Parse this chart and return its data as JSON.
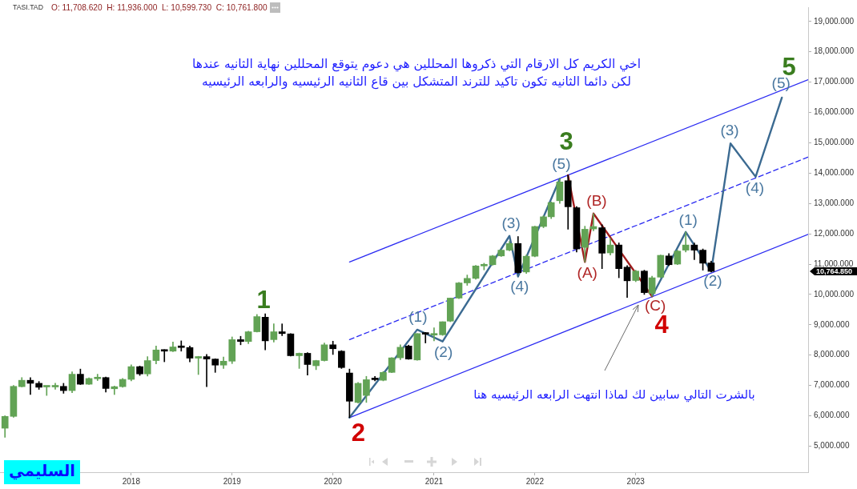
{
  "chart_data": {
    "type": "candlestick",
    "title": "TASI.TAD",
    "subtitle": "O: 11,708.620  H: 11,936.000  L: 10,599.730  C: 10,761.800",
    "x": [
      "2016-10",
      "2016-11",
      "2016-12",
      "2017-01",
      "2017-02",
      "2017-03",
      "2017-04",
      "2017-05",
      "2017-06",
      "2017-07",
      "2017-08",
      "2017-09",
      "2017-10",
      "2017-11",
      "2017-12",
      "2018-01",
      "2018-02",
      "2018-03",
      "2018-04",
      "2018-05",
      "2018-06",
      "2018-07",
      "2018-08",
      "2018-09",
      "2018-10",
      "2018-11",
      "2018-12",
      "2019-01",
      "2019-02",
      "2019-03",
      "2019-04",
      "2019-05",
      "2019-06",
      "2019-07",
      "2019-08",
      "2019-09",
      "2019-10",
      "2019-11",
      "2019-12",
      "2020-01",
      "2020-02",
      "2020-03",
      "2020-04",
      "2020-05",
      "2020-06",
      "2020-07",
      "2020-08",
      "2020-09",
      "2020-10",
      "2020-11",
      "2020-12",
      "2021-01",
      "2021-02",
      "2021-03",
      "2021-04",
      "2021-05",
      "2021-06",
      "2021-07",
      "2021-08",
      "2021-09",
      "2021-10",
      "2021-11",
      "2021-12",
      "2022-01",
      "2022-02",
      "2022-03",
      "2022-04",
      "2022-05",
      "2022-06",
      "2022-07",
      "2022-08",
      "2022-09",
      "2022-10",
      "2022-11",
      "2022-12",
      "2023-01",
      "2023-02",
      "2023-03",
      "2023-04",
      "2023-05",
      "2023-06",
      "2023-07",
      "2023-08",
      "2023-09",
      "2023-10"
    ],
    "ohlc": [
      [
        5590,
        6000,
        5290,
        5980
      ],
      [
        5980,
        7000,
        5950,
        6970
      ],
      [
        6960,
        7260,
        6950,
        7170
      ],
      [
        7170,
        7260,
        6700,
        7070
      ],
      [
        7070,
        7130,
        6870,
        6940
      ],
      [
        6950,
        6970,
        6670,
        6960
      ],
      [
        6950,
        7070,
        6870,
        6960
      ],
      [
        6970,
        7070,
        6740,
        6830
      ],
      [
        6830,
        7450,
        6760,
        7370
      ],
      [
        7370,
        7540,
        7030,
        7040
      ],
      [
        7040,
        7250,
        7030,
        7230
      ],
      [
        7220,
        7370,
        7160,
        7260
      ],
      [
        7260,
        7280,
        6780,
        6900
      ],
      [
        6890,
        6980,
        6700,
        6960
      ],
      [
        6960,
        7230,
        6940,
        7200
      ],
      [
        7200,
        7680,
        7150,
        7620
      ],
      [
        7620,
        7640,
        7330,
        7380
      ],
      [
        7380,
        7950,
        7310,
        7820
      ],
      [
        7820,
        8300,
        7710,
        8170
      ],
      [
        8170,
        8180,
        7780,
        8130
      ],
      [
        8130,
        8430,
        8110,
        8270
      ],
      [
        8300,
        8470,
        8130,
        8250
      ],
      [
        8250,
        8300,
        7780,
        7900
      ],
      [
        7900,
        7960,
        7360,
        7950
      ],
      [
        7950,
        8020,
        6960,
        7870
      ],
      [
        7870,
        7880,
        7430,
        7670
      ],
      [
        7670,
        7940,
        7560,
        7800
      ],
      [
        7800,
        8600,
        7720,
        8510
      ],
      [
        8510,
        8620,
        8340,
        8450
      ],
      [
        8450,
        8790,
        8380,
        8770
      ],
      [
        8770,
        9340,
        8760,
        9270
      ],
      [
        9250,
        9360,
        8170,
        8470
      ],
      [
        8510,
        9030,
        8430,
        8770
      ],
      [
        8770,
        9030,
        8640,
        8710
      ],
      [
        8700,
        8710,
        7970,
        7980
      ],
      [
        7980,
        8070,
        7560,
        8060
      ],
      [
        8060,
        8080,
        7340,
        7690
      ],
      [
        7650,
        7830,
        7520,
        7820
      ],
      [
        7820,
        8400,
        7800,
        8340
      ],
      [
        8340,
        8460,
        8020,
        8210
      ],
      [
        8130,
        8150,
        7560,
        7590
      ],
      [
        7410,
        7540,
        5940,
        6480
      ],
      [
        6440,
        7100,
        6420,
        7070
      ],
      [
        6670,
        7300,
        6440,
        7190
      ],
      [
        7230,
        7300,
        7150,
        7190
      ],
      [
        7170,
        7460,
        7150,
        7430
      ],
      [
        7430,
        7920,
        7420,
        7910
      ],
      [
        7910,
        8340,
        7850,
        8260
      ],
      [
        8300,
        8330,
        7860,
        7870
      ],
      [
        7840,
        8710,
        7830,
        8710
      ],
      [
        8700,
        8750,
        8400,
        8690
      ],
      [
        8660,
        8900,
        8470,
        8680
      ],
      [
        8670,
        9100,
        8650,
        9100
      ],
      [
        9120,
        9880,
        9100,
        9880
      ],
      [
        9880,
        10400,
        9860,
        10380
      ],
      [
        10380,
        10640,
        10300,
        10530
      ],
      [
        10530,
        10960,
        10500,
        10940
      ],
      [
        10940,
        11030,
        10810,
        10960
      ],
      [
        10980,
        11290,
        10960,
        11270
      ],
      [
        11270,
        11480,
        11250,
        11460
      ],
      [
        11460,
        11750,
        11440,
        11680
      ],
      [
        11680,
        11910,
        10700,
        10720
      ],
      [
        10740,
        11300,
        10690,
        11260
      ],
      [
        11260,
        12250,
        11240,
        12240
      ],
      [
        12240,
        12600,
        12200,
        12560
      ],
      [
        12560,
        13050,
        12500,
        13030
      ],
      [
        13090,
        13820,
        13000,
        13710
      ],
      [
        13750,
        13930,
        12150,
        12890
      ],
      [
        12860,
        12900,
        11400,
        11500
      ],
      [
        11550,
        12250,
        11070,
        12150
      ],
      [
        12160,
        12670,
        12100,
        12240
      ],
      [
        12200,
        12300,
        10850,
        11360
      ],
      [
        11370,
        11850,
        11300,
        11630
      ],
      [
        11630,
        11700,
        10550,
        10850
      ],
      [
        10900,
        10950,
        9900,
        10450
      ],
      [
        10460,
        10800,
        10420,
        10770
      ],
      [
        10770,
        10800,
        10000,
        10060
      ],
      [
        10030,
        10600,
        9940,
        10550
      ],
      [
        10570,
        11300,
        10550,
        11290
      ],
      [
        11270,
        11350,
        10950,
        10980
      ],
      [
        11000,
        11460,
        10980,
        11430
      ],
      [
        11460,
        12060,
        11400,
        11630
      ],
      [
        11630,
        11700,
        11150,
        11460
      ],
      [
        11460,
        11500,
        10800,
        11030
      ],
      [
        11040,
        11100,
        10740,
        10760
      ]
    ],
    "colors": [
      "#62a355",
      "#62a355",
      "#62a355",
      "#000000",
      "#000000",
      "#62a355",
      "#62a355",
      "#000000",
      "#62a355",
      "#000000",
      "#62a355",
      "#62a355",
      "#000000",
      "#62a355",
      "#62a355",
      "#62a355",
      "#000000",
      "#62a355",
      "#62a355",
      "#000000",
      "#62a355",
      "#000000",
      "#000000",
      "#62a355",
      "#000000",
      "#000000",
      "#62a355",
      "#62a355",
      "#000000",
      "#62a355",
      "#62a355",
      "#000000",
      "#62a355",
      "#000000",
      "#000000",
      "#62a355",
      "#000000",
      "#62a355",
      "#62a355",
      "#000000",
      "#000000",
      "#000000",
      "#62a355",
      "#62a355",
      "#000000",
      "#62a355",
      "#62a355",
      "#62a355",
      "#000000",
      "#62a355",
      "#000000",
      "#62a355",
      "#62a355",
      "#62a355",
      "#62a355",
      "#62a355",
      "#62a355",
      "#62a355",
      "#62a355",
      "#62a355",
      "#62a355",
      "#000000",
      "#62a355",
      "#62a355",
      "#62a355",
      "#62a355",
      "#62a355",
      "#000000",
      "#000000",
      "#62a355",
      "#62a355",
      "#000000",
      "#62a355",
      "#000000",
      "#000000",
      "#62a355",
      "#000000",
      "#62a355",
      "#62a355",
      "#000000",
      "#62a355",
      "#62a355",
      "#000000",
      "#000000",
      "#000000"
    ],
    "series": [
      {
        "type": "line",
        "color": "#3b6a91",
        "x": [
          "2020-03",
          "2020-11",
          "2021-02",
          "2021-10",
          "2021-11",
          "2022-04"
        ],
        "values": [
          5940,
          8840,
          8450,
          11930,
          10590,
          13810
        ]
      },
      {
        "type": "line",
        "color": "#a01c1c",
        "x": [
          "2022-05",
          "2022-07",
          "2022-08",
          "2023-03"
        ],
        "values": [
          13930,
          11070,
          12670,
          9940
        ]
      },
      {
        "type": "line",
        "color": "#3b6a91",
        "x": [
          "2023-03",
          "2023-07",
          "2023-10",
          "2023-12-10",
          "2024-03-10",
          "2024-06-13"
        ],
        "values": [
          9940,
          12060,
          10770,
          14980,
          13880,
          16490
        ]
      },
      {
        "type": "line",
        "color": "#2a2af2",
        "x": [
          "2020-03",
          "2024-09-16"
        ],
        "values": [
          11070,
          17080
        ]
      },
      {
        "type": "line",
        "color": "#2a2af2",
        "line_style": "dashed",
        "x": [
          "2020-03",
          "2024-09-16"
        ],
        "values": [
          8510,
          14530
        ]
      },
      {
        "type": "line",
        "color": "#2a2af2",
        "x": [
          "2020-03",
          "2024-09-16"
        ],
        "values": [
          5940,
          11980
        ]
      }
    ],
    "xlim": [
      "2016-09-13",
      "2024-09-16"
    ],
    "xticks": [
      "2018",
      "2019",
      "2020",
      "2021",
      "2022",
      "2023"
    ],
    "ylim": [
      4140,
      19470
    ],
    "yticks": [
      {
        "value": 5000,
        "label": "5,000.000"
      },
      {
        "value": 6000,
        "label": "6,000.000"
      },
      {
        "value": 7000,
        "label": "7,000.000"
      },
      {
        "value": 8000,
        "label": "8,000.000"
      },
      {
        "value": 9000,
        "label": "9,000.000"
      },
      {
        "value": 10000,
        "label": "10,000.000"
      },
      {
        "value": 11000,
        "label": "11,000.000"
      },
      {
        "value": 12000,
        "label": "12,000.000"
      },
      {
        "value": 13000,
        "label": "13,000.000"
      },
      {
        "value": 14000,
        "label": "14,000.000"
      },
      {
        "value": 15000,
        "label": "15,000.000"
      },
      {
        "value": 16000,
        "label": "16,000.000"
      },
      {
        "value": 17000,
        "label": "17,000.000"
      },
      {
        "value": 18000,
        "label": "18,000.000"
      },
      {
        "value": 19000,
        "label": "19,000.000"
      }
    ],
    "annotations": [
      "اخي الكريم كل الارقام التي ذكروها المحللين هي دعوم يتوقع المحللين نهاية الثانيه عندها",
      "لكن دائما الثانيه تكون تاكيد للترند المتشكل بين قاع الثانيه الرئيسيه والرابعه الرئيسيه",
      "السليمي",
      "بالشرت التالي سابين لك لماذا انتهت الرابعه الرئيسيه هنا",
      "10,764.850",
      {
        "text": "1",
        "x": "2019-05",
        "y": 9360
      },
      {
        "text": "2",
        "x": "2020-03",
        "y": 5940
      },
      {
        "text": "3",
        "x": "2022-05",
        "y": 13930
      },
      {
        "text": "4",
        "x": "2023-03",
        "y": 9940
      },
      {
        "text": "5",
        "x": "2024-06-13",
        "y": 16490
      },
      {
        "text": "(1)",
        "x": "2020-11",
        "y": 8840
      },
      {
        "text": "(2)",
        "x": "2021-02",
        "y": 8450
      },
      {
        "text": "(3)",
        "x": "2021-10",
        "y": 11930
      },
      {
        "text": "(4)",
        "x": "2021-11",
        "y": 10590
      },
      {
        "text": "(5)",
        "x": "2022-04",
        "y": 13810
      },
      {
        "text": "(A)",
        "x": "2022-07",
        "y": 11070
      },
      {
        "text": "(B)",
        "x": "2022-08",
        "y": 12670
      },
      {
        "text": "(C)",
        "x": "2023-03",
        "y": 9940
      },
      {
        "text": "(1)",
        "x": "2023-07",
        "y": 12060
      },
      {
        "text": "(2)",
        "x": "2023-10",
        "y": 10770
      },
      {
        "text": "(3)",
        "x": "2023-12-10",
        "y": 14980
      },
      {
        "text": "(4)",
        "x": "2024-03-10",
        "y": 13880
      },
      {
        "text": "(5)",
        "x": "2024-06-13",
        "y": 16490
      }
    ]
  }
}
